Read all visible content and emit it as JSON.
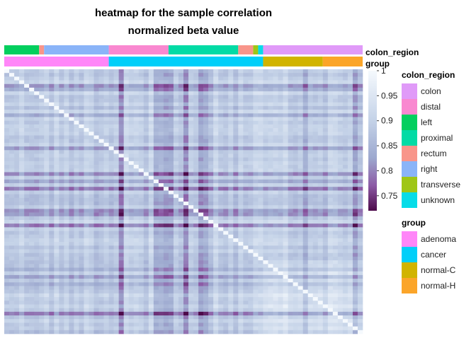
{
  "chart_data": {
    "type": "heatmap",
    "title_lines": [
      "heatmap for the sample correlation",
      "normalized beta value"
    ],
    "annotation_track_labels": [
      "colon_region",
      "group"
    ],
    "color_scale": {
      "ticks": [
        {
          "value": 1.0,
          "label": "1"
        },
        {
          "value": 0.95,
          "label": "0.95"
        },
        {
          "value": 0.9,
          "label": "0.9"
        },
        {
          "value": 0.85,
          "label": "0.85"
        },
        {
          "value": 0.8,
          "label": "0.8"
        },
        {
          "value": 0.75,
          "label": "0.75"
        }
      ],
      "min": 0.72,
      "max": 1.0,
      "low_color": "#4d0a4a",
      "mid_color": "#9da9cf",
      "high_color": "#f5f9fd"
    },
    "legends": {
      "colon_region": {
        "title": "colon_region",
        "items": [
          {
            "label": "colon",
            "color": "#e09af8"
          },
          {
            "label": "distal",
            "color": "#f988d0"
          },
          {
            "label": "left",
            "color": "#03cf5e"
          },
          {
            "label": "proximal",
            "color": "#02dba5"
          },
          {
            "label": "rectum",
            "color": "#f8958a"
          },
          {
            "label": "right",
            "color": "#8ab4f8"
          },
          {
            "label": "transverse",
            "color": "#9fc616"
          },
          {
            "label": "unknown",
            "color": "#06dce8"
          }
        ]
      },
      "group": {
        "title": "group",
        "items": [
          {
            "label": "adenoma",
            "color": "#ff86f8"
          },
          {
            "label": "cancer",
            "color": "#00cff9"
          },
          {
            "label": "normal-C",
            "color": "#d1b400"
          },
          {
            "label": "normal-H",
            "color": "#fba529"
          }
        ]
      }
    },
    "n_samples": 72,
    "colon_region_segments": [
      {
        "category": "left",
        "start": 0,
        "end": 7
      },
      {
        "category": "rectum",
        "start": 7,
        "end": 8
      },
      {
        "category": "right",
        "start": 8,
        "end": 21
      },
      {
        "category": "distal",
        "start": 21,
        "end": 33
      },
      {
        "category": "proximal",
        "start": 33,
        "end": 47
      },
      {
        "category": "rectum",
        "start": 47,
        "end": 50
      },
      {
        "category": "transverse",
        "start": 50,
        "end": 51
      },
      {
        "category": "unknown",
        "start": 51,
        "end": 52
      },
      {
        "category": "colon",
        "start": 52,
        "end": 72
      }
    ],
    "group_segments": [
      {
        "category": "adenoma",
        "start": 0,
        "end": 21
      },
      {
        "category": "cancer",
        "start": 21,
        "end": 52
      },
      {
        "category": "normal-C",
        "start": 52,
        "end": 64
      },
      {
        "category": "normal-H",
        "start": 64,
        "end": 72
      }
    ]
  }
}
